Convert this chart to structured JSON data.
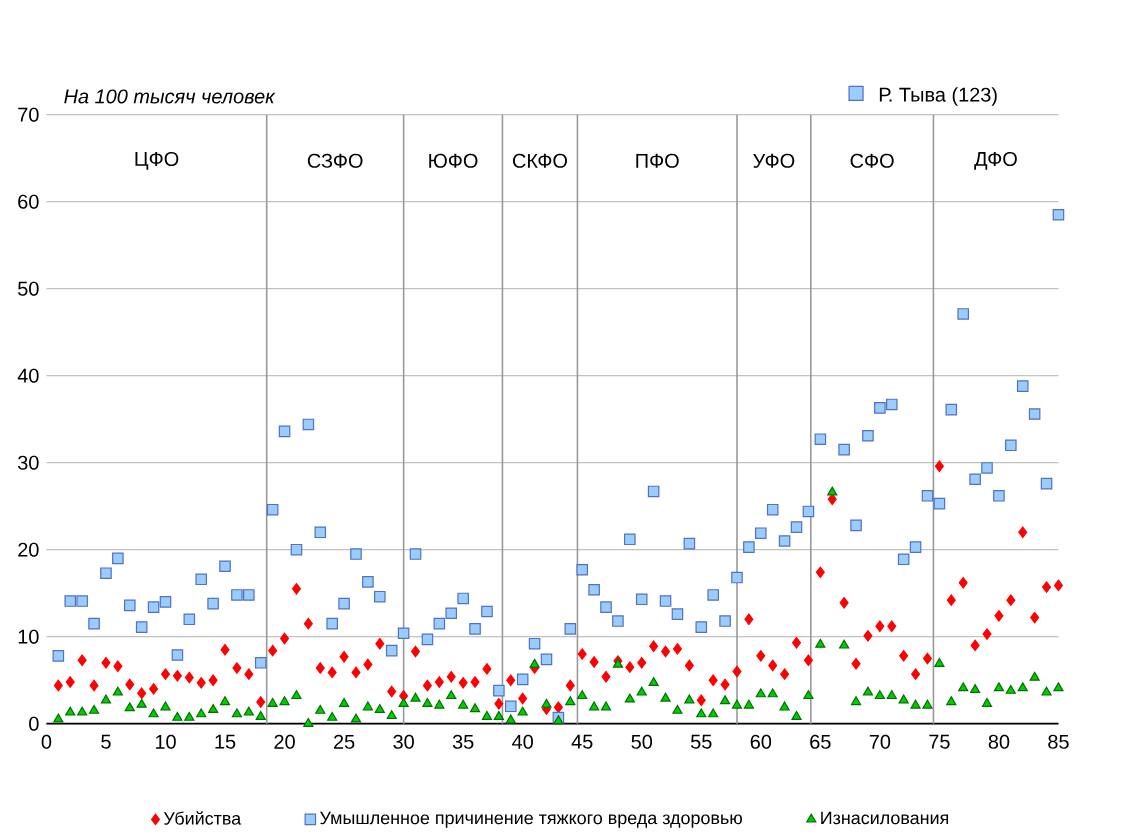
{
  "chart_data": {
    "type": "scatter",
    "ylabel": "На 100 тысяч человек",
    "x": [
      1,
      2,
      3,
      4,
      5,
      6,
      7,
      8,
      9,
      10,
      11,
      12,
      13,
      14,
      15,
      16,
      17,
      18,
      19,
      20,
      21,
      22,
      23,
      24,
      25,
      26,
      27,
      28,
      29,
      30,
      31,
      32,
      33,
      34,
      35,
      36,
      37,
      38,
      39,
      40,
      41,
      42,
      43,
      44,
      45,
      46,
      47,
      48,
      49,
      50,
      51,
      52,
      53,
      54,
      55,
      56,
      57,
      58,
      59,
      60,
      61,
      62,
      63,
      64,
      65,
      66,
      67,
      68,
      69,
      70,
      71,
      72,
      73,
      74,
      75,
      76,
      77,
      78,
      79,
      80,
      81,
      82,
      83,
      84,
      85
    ],
    "series": [
      {
        "name": "Убийства",
        "color": "#ff0000",
        "marker": "diamond",
        "values": [
          4.4,
          4.8,
          7.3,
          4.4,
          7.0,
          6.6,
          4.5,
          3.5,
          4.0,
          5.7,
          5.5,
          5.3,
          4.7,
          5.0,
          8.5,
          6.4,
          5.7,
          2.5,
          8.4,
          9.8,
          15.5,
          11.5,
          6.4,
          5.9,
          7.7,
          5.9,
          6.8,
          9.2,
          3.7,
          3.2,
          8.3,
          4.4,
          4.8,
          5.4,
          4.7,
          4.8,
          6.3,
          2.3,
          5.0,
          2.9,
          6.4,
          1.7,
          1.9,
          4.4,
          8.0,
          7.1,
          5.4,
          7.2,
          6.5,
          7.0,
          8.9,
          8.3,
          8.6,
          6.7,
          2.7,
          5.0,
          4.5,
          6.0,
          12.0,
          7.8,
          6.7,
          5.7,
          9.3,
          7.3,
          17.4,
          25.8,
          13.9,
          6.9,
          10.1,
          11.2,
          11.2,
          7.8,
          5.7,
          7.5,
          29.6,
          14.2,
          16.2,
          9.0,
          10.3,
          12.4,
          14.2,
          22.0,
          12.2,
          15.7,
          15.9
        ]
      },
      {
        "name": "Умышленное причинение тяжкого вреда здоровью",
        "color": "#99ccff",
        "marker": "square",
        "values": [
          7.8,
          14.1,
          14.1,
          11.5,
          17.3,
          19.0,
          13.6,
          11.1,
          13.4,
          14.0,
          7.9,
          12.0,
          16.6,
          13.8,
          18.1,
          14.8,
          14.8,
          7.0,
          24.6,
          33.6,
          20.0,
          34.4,
          22.0,
          11.5,
          13.8,
          19.5,
          16.3,
          14.6,
          8.4,
          10.4,
          19.5,
          9.7,
          11.5,
          12.7,
          14.4,
          10.9,
          12.9,
          3.8,
          2.0,
          5.1,
          9.2,
          7.4,
          0.7,
          10.9,
          17.7,
          15.4,
          13.4,
          11.8,
          21.2,
          14.3,
          26.7,
          14.1,
          12.6,
          20.7,
          11.1,
          14.8,
          11.8,
          16.8,
          20.3,
          21.9,
          24.6,
          21.0,
          22.6,
          24.4,
          32.7,
          null,
          31.5,
          22.8,
          33.1,
          36.3,
          36.7,
          18.9,
          20.3,
          26.2,
          25.3,
          36.1,
          47.1,
          28.1,
          29.4,
          26.2,
          32.0,
          38.8,
          35.6,
          27.6,
          58.5
        ]
      },
      {
        "name": "Изнасилования",
        "color": "#00cc00",
        "marker": "triangle",
        "values": [
          0.5,
          1.3,
          1.3,
          1.5,
          2.7,
          3.6,
          1.8,
          2.2,
          1.1,
          1.9,
          0.7,
          0.7,
          1.1,
          1.6,
          2.5,
          1.1,
          1.3,
          0.8,
          2.3,
          2.5,
          3.2,
          0.0,
          1.5,
          0.7,
          2.3,
          0.5,
          1.9,
          1.6,
          0.9,
          2.3,
          2.9,
          2.3,
          2.1,
          3.2,
          2.1,
          1.7,
          0.8,
          0.8,
          0.4,
          1.3,
          6.8,
          2.2,
          0.3,
          2.5,
          3.2,
          1.9,
          1.9,
          6.8,
          2.8,
          3.6,
          4.7,
          2.9,
          1.5,
          2.7,
          1.1,
          1.1,
          2.6,
          2.1,
          2.1,
          3.4,
          3.4,
          1.9,
          0.8,
          3.2,
          9.1,
          26.6,
          9.0,
          2.5,
          3.6,
          3.2,
          3.2,
          2.7,
          2.1,
          2.1,
          6.9,
          2.5,
          4.1,
          3.9,
          2.3,
          4.1,
          3.8,
          4.1,
          5.3,
          3.6,
          4.1
        ]
      }
    ],
    "xlim": [
      0,
      85
    ],
    "ylim": [
      0,
      70
    ],
    "xticks": [
      0,
      5,
      10,
      15,
      20,
      25,
      30,
      35,
      40,
      45,
      50,
      55,
      60,
      65,
      70,
      75,
      80,
      85
    ],
    "yticks": [
      0,
      10,
      20,
      30,
      40,
      50,
      60,
      70
    ],
    "grid": "y",
    "legend": "bottom",
    "ref_lines": [
      {
        "axis": "x",
        "value": 18.5,
        "color": "#999999"
      },
      {
        "axis": "x",
        "value": 30,
        "color": "#999999"
      },
      {
        "axis": "x",
        "value": 38.3,
        "color": "#999999"
      },
      {
        "axis": "x",
        "value": 44.6,
        "color": "#999999"
      },
      {
        "axis": "x",
        "value": 58,
        "color": "#999999"
      },
      {
        "axis": "x",
        "value": 64.2,
        "color": "#999999"
      },
      {
        "axis": "x",
        "value": 74.5,
        "color": "#999999"
      }
    ],
    "annotations": [
      "Р. Тыва (123)",
      "ЦФО",
      "СЗФО",
      "ЮФО",
      "СКФО",
      "ПФО",
      "УФО",
      "СФО",
      "ДФО"
    ]
  }
}
